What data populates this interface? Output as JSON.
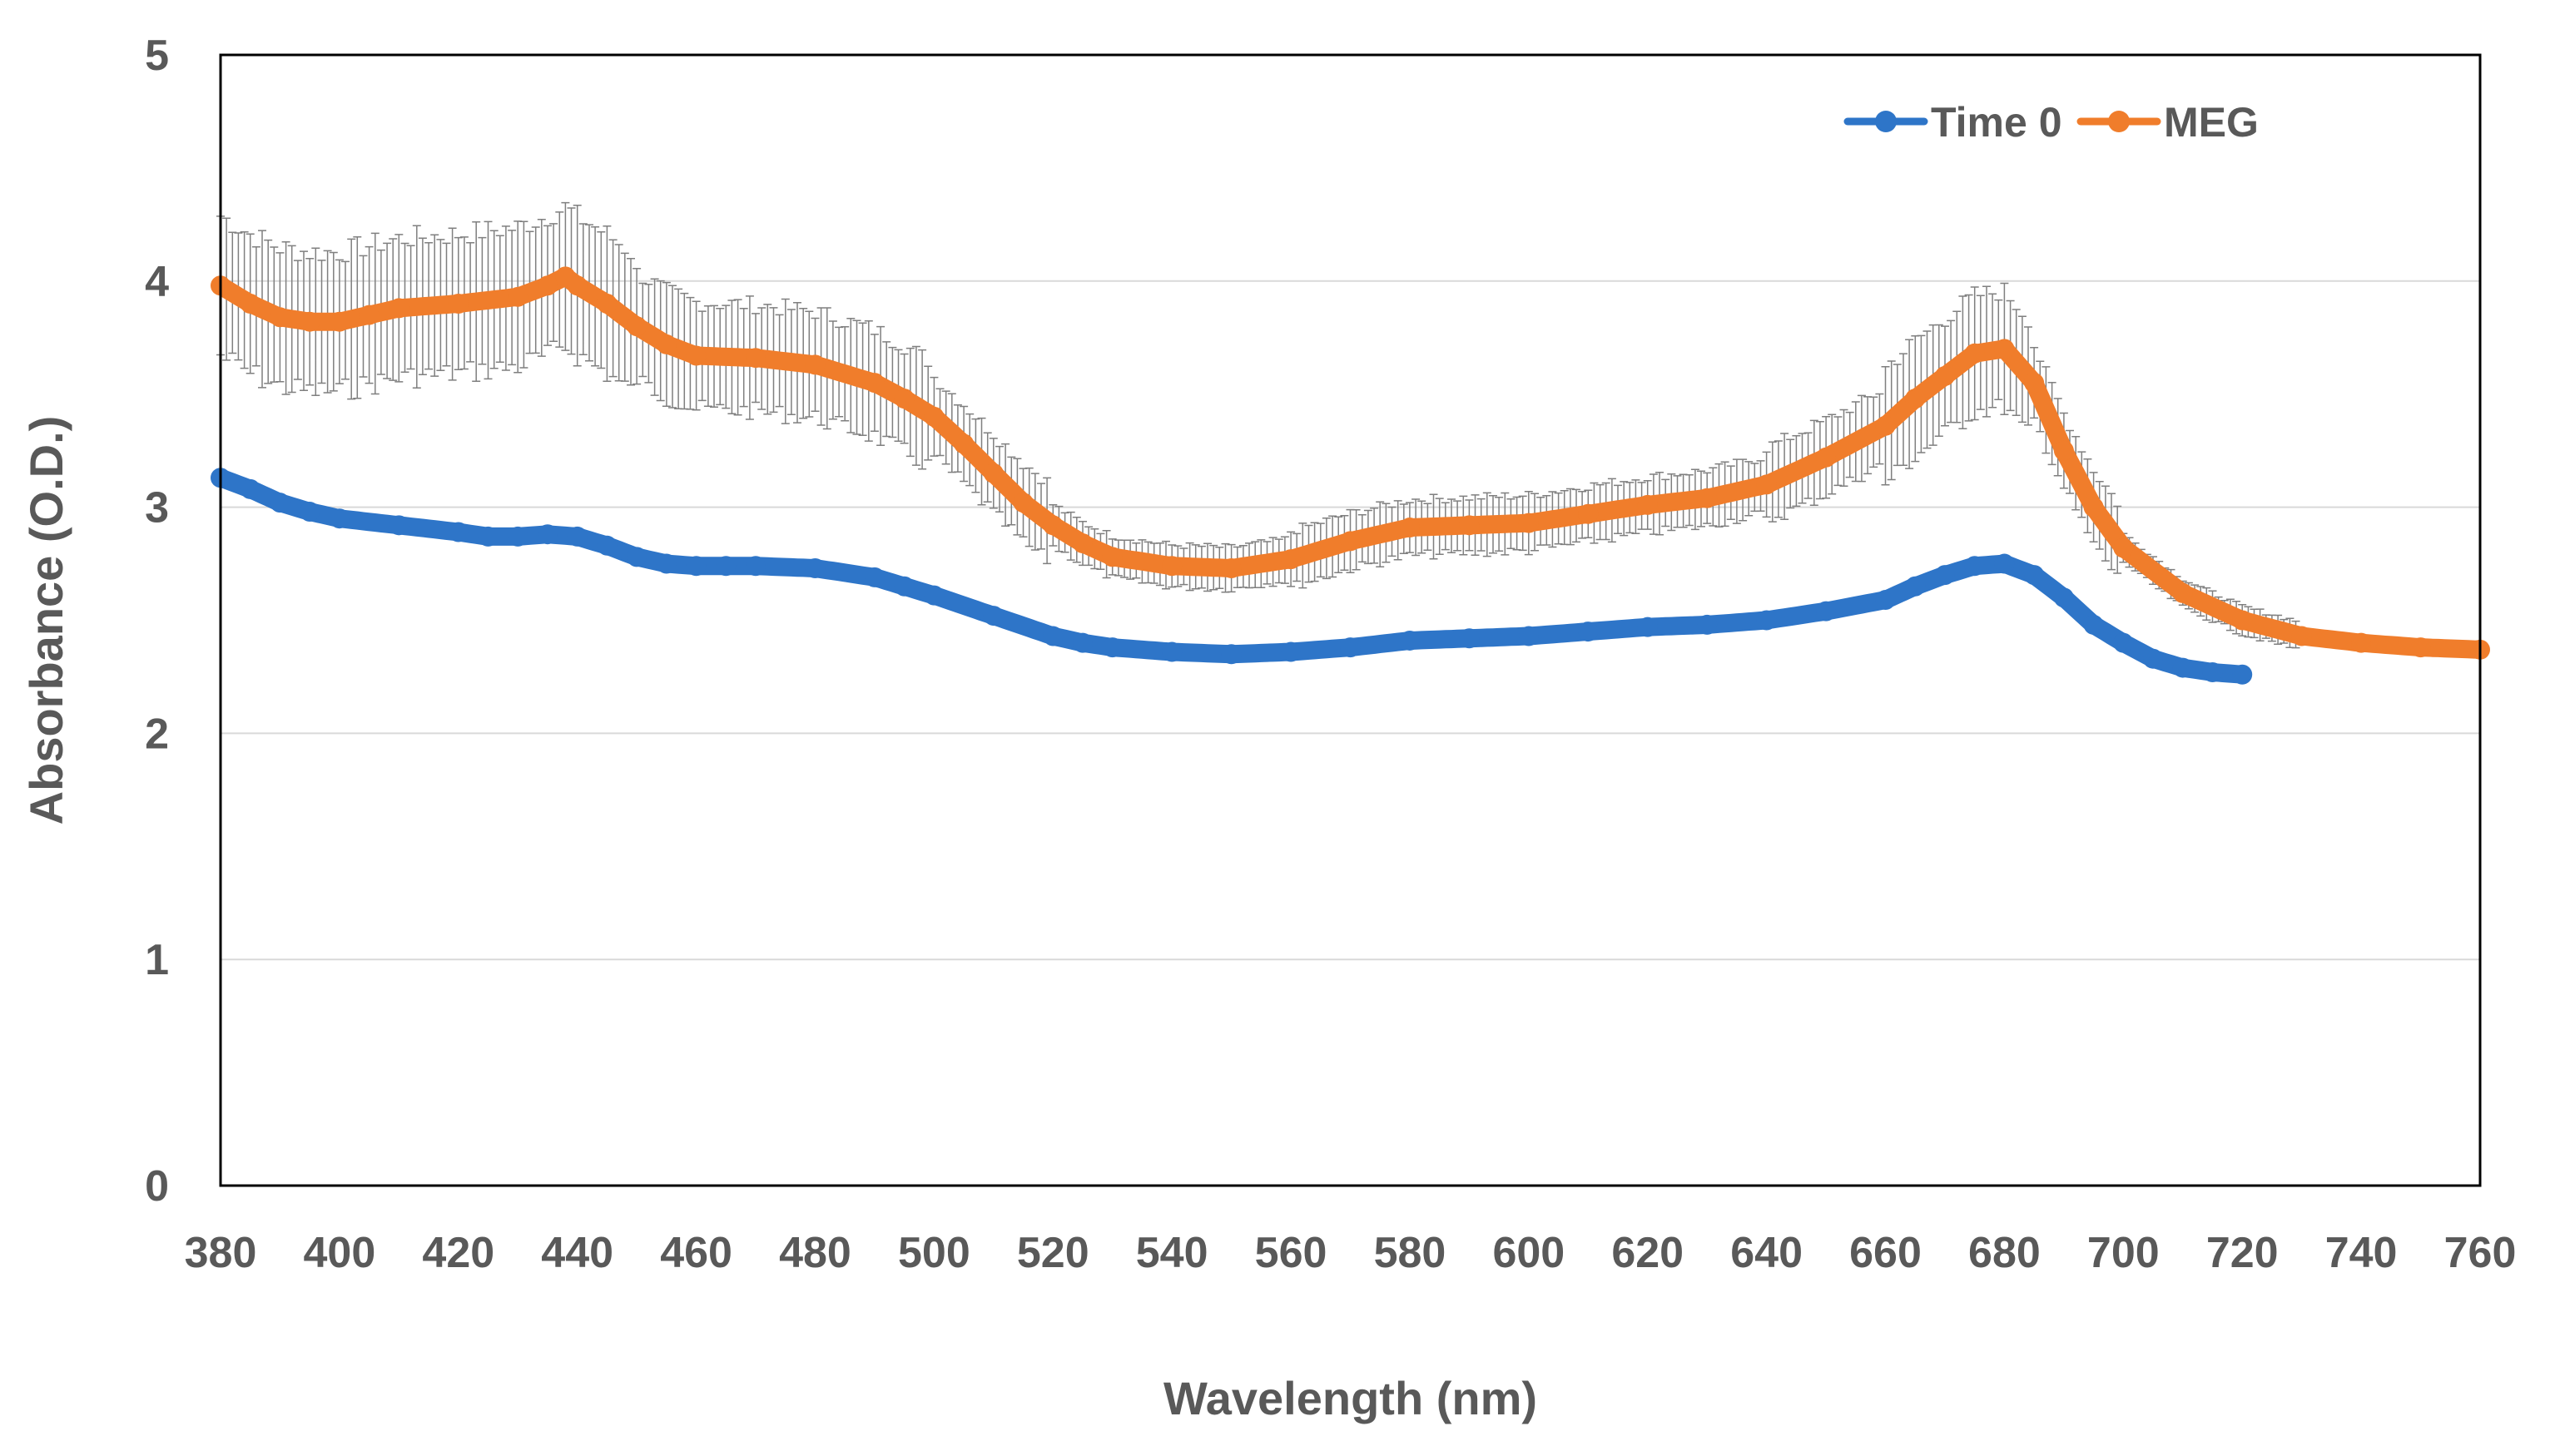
{
  "chart_data": {
    "type": "line",
    "xlabel": "Wavelength (nm)",
    "ylabel": "Absorbance (O.D.)",
    "xlim": [
      380,
      760
    ],
    "ylim": [
      0,
      5
    ],
    "x_ticks": [
      "380",
      "400",
      "420",
      "440",
      "460",
      "480",
      "500",
      "520",
      "540",
      "560",
      "580",
      "600",
      "620",
      "640",
      "660",
      "680",
      "700",
      "720",
      "740",
      "760"
    ],
    "y_ticks": [
      "0",
      "1",
      "2",
      "3",
      "4",
      "5"
    ],
    "grid": "horizontal",
    "legend_position": "top-right",
    "series": [
      {
        "name": "Time 0",
        "color": "#2E75C8",
        "x": [
          380,
          385,
          390,
          395,
          400,
          410,
          420,
          425,
          430,
          435,
          440,
          445,
          450,
          455,
          460,
          465,
          470,
          480,
          490,
          495,
          500,
          510,
          520,
          525,
          530,
          540,
          550,
          560,
          570,
          580,
          590,
          600,
          610,
          620,
          630,
          640,
          650,
          660,
          665,
          670,
          675,
          680,
          685,
          690,
          695,
          700,
          705,
          710,
          715,
          720
        ],
        "y": [
          3.13,
          3.08,
          3.02,
          2.98,
          2.95,
          2.92,
          2.89,
          2.87,
          2.87,
          2.88,
          2.87,
          2.83,
          2.78,
          2.75,
          2.74,
          2.74,
          2.74,
          2.73,
          2.69,
          2.65,
          2.61,
          2.52,
          2.43,
          2.4,
          2.38,
          2.36,
          2.35,
          2.36,
          2.38,
          2.41,
          2.42,
          2.43,
          2.45,
          2.47,
          2.48,
          2.5,
          2.54,
          2.59,
          2.65,
          2.7,
          2.74,
          2.75,
          2.7,
          2.6,
          2.48,
          2.4,
          2.33,
          2.29,
          2.27,
          2.26
        ]
      },
      {
        "name": "MEG",
        "color": "#F07D2B",
        "x": [
          380,
          385,
          390,
          395,
          400,
          405,
          410,
          420,
          430,
          435,
          438,
          440,
          445,
          450,
          455,
          460,
          470,
          480,
          490,
          495,
          500,
          505,
          510,
          515,
          520,
          525,
          530,
          540,
          550,
          560,
          570,
          580,
          590,
          600,
          610,
          620,
          630,
          640,
          650,
          660,
          665,
          670,
          675,
          680,
          685,
          690,
          695,
          700,
          710,
          720,
          730,
          740,
          750,
          760
        ],
        "y": [
          3.98,
          3.9,
          3.84,
          3.82,
          3.82,
          3.85,
          3.88,
          3.9,
          3.93,
          3.98,
          4.02,
          3.98,
          3.9,
          3.8,
          3.72,
          3.67,
          3.66,
          3.63,
          3.55,
          3.48,
          3.4,
          3.28,
          3.15,
          3.02,
          2.92,
          2.84,
          2.78,
          2.74,
          2.73,
          2.77,
          2.85,
          2.91,
          2.92,
          2.93,
          2.97,
          3.01,
          3.04,
          3.1,
          3.22,
          3.36,
          3.48,
          3.58,
          3.68,
          3.7,
          3.55,
          3.25,
          3.0,
          2.82,
          2.62,
          2.5,
          2.43,
          2.4,
          2.38,
          2.37
        ]
      }
    ]
  }
}
